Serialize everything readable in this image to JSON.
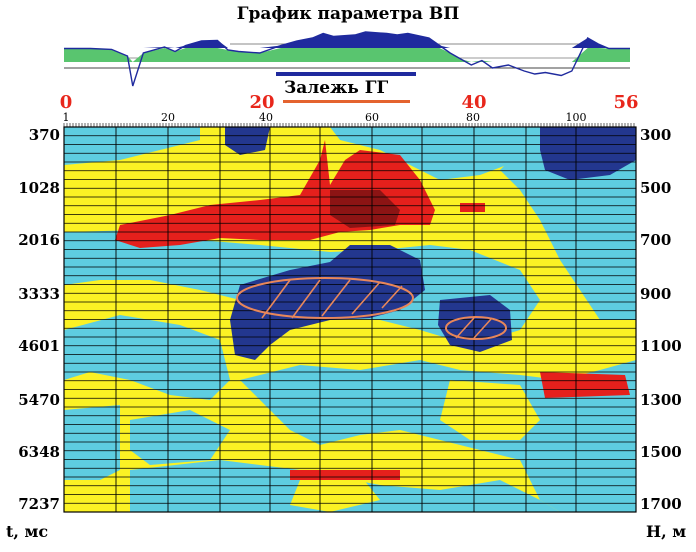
{
  "title": "График параметра ВП",
  "zone_label": "Залежь ГГ",
  "scale_red_ticks": [
    "0",
    "20",
    "40",
    "56"
  ],
  "scale_black_ticks": [
    "1",
    "20",
    "40",
    "60",
    "80",
    "100"
  ],
  "left_axis_label": "t, мс",
  "right_axis_label": "H, м",
  "left_ticks": [
    "370",
    "1028",
    "2016",
    "3333",
    "4601",
    "5470",
    "6348",
    "7237"
  ],
  "right_ticks": [
    "300",
    "500",
    "700",
    "900",
    "1100",
    "1300",
    "1500",
    "1700"
  ],
  "colors": {
    "yellow": "#fbf224",
    "cyan": "#5ecde0",
    "blue": "#23378f",
    "red": "#e5201c",
    "dark_red": "#8c1414",
    "green": "#59c56f",
    "curve": "#1f2a9e",
    "ellipse": "#e8875a",
    "zone_bar": "#e4632f"
  },
  "chart_data": {
    "type": "heatmap",
    "title": "График параметра ВП",
    "xlabel": "",
    "ylabel_left": "t, мс",
    "ylabel_right": "H, м",
    "x_ticks_red": [
      0,
      20,
      40,
      56
    ],
    "x_ticks_black": [
      1,
      20,
      40,
      60,
      80,
      100
    ],
    "left_ticks_ms": [
      370,
      1028,
      2016,
      3333,
      4601,
      5470,
      6348,
      7237
    ],
    "right_ticks_m": [
      300,
      500,
      700,
      900,
      1100,
      1300,
      1500,
      1700
    ],
    "classes": [
      "yellow",
      "cyan",
      "blue",
      "red"
    ],
    "anomaly": "Залежь ГГ",
    "vp_curve": [
      [
        1,
        0.45
      ],
      [
        6,
        0.45
      ],
      [
        10,
        0.42
      ],
      [
        13,
        0.2
      ],
      [
        14,
        -0.8
      ],
      [
        16,
        0.3
      ],
      [
        20,
        0.5
      ],
      [
        22,
        0.35
      ],
      [
        24,
        0.55
      ],
      [
        27,
        0.7
      ],
      [
        30,
        0.72
      ],
      [
        32,
        0.4
      ],
      [
        34,
        0.35
      ],
      [
        38,
        0.3
      ],
      [
        42,
        0.55
      ],
      [
        45,
        0.7
      ],
      [
        48,
        0.8
      ],
      [
        50,
        0.95
      ],
      [
        52,
        0.85
      ],
      [
        56,
        0.9
      ],
      [
        58,
        1.0
      ],
      [
        62,
        0.95
      ],
      [
        64,
        0.9
      ],
      [
        66,
        0.95
      ],
      [
        70,
        0.8
      ],
      [
        72,
        0.55
      ],
      [
        74,
        0.3
      ],
      [
        76,
        0.1
      ],
      [
        78,
        -0.1
      ],
      [
        80,
        0.05
      ],
      [
        82,
        -0.2
      ],
      [
        85,
        -0.1
      ],
      [
        88,
        -0.3
      ],
      [
        90,
        -0.4
      ],
      [
        92,
        -0.35
      ],
      [
        95,
        -0.45
      ],
      [
        97,
        -0.3
      ],
      [
        100,
        0.8
      ],
      [
        102,
        0.6
      ],
      [
        104,
        0.45
      ],
      [
        108,
        0.45
      ]
    ]
  }
}
